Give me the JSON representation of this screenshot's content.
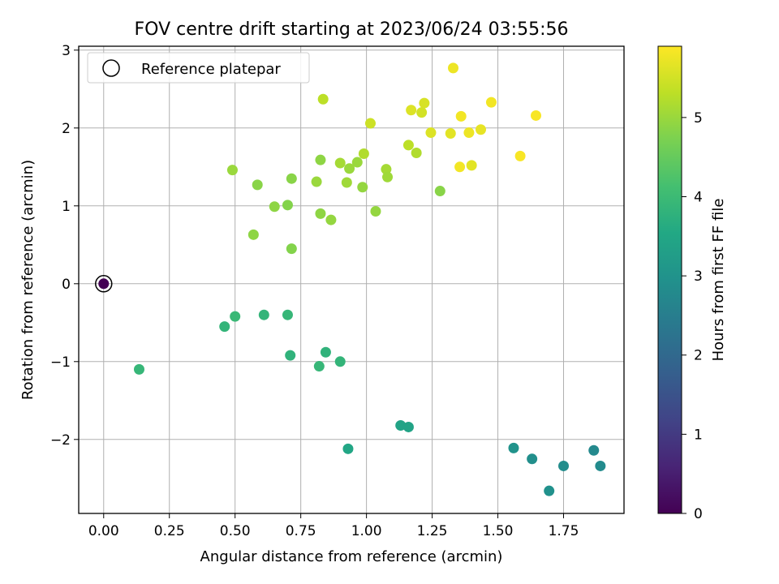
{
  "chart_data": {
    "type": "scatter",
    "title": "FOV centre drift starting at 2023/06/24 03:55:56",
    "xlabel": "Angular distance from reference (arcmin)",
    "ylabel": "Rotation from reference (arcmin)",
    "xlim": [
      -0.095,
      1.98
    ],
    "ylim": [
      -2.95,
      3.05
    ],
    "xticks": [
      "0.00",
      "0.25",
      "0.50",
      "0.75",
      "1.00",
      "1.25",
      "1.50",
      "1.75"
    ],
    "xtick_values": [
      0,
      0.25,
      0.5,
      0.75,
      1.0,
      1.25,
      1.5,
      1.75
    ],
    "yticks": [
      "−2",
      "−1",
      "0",
      "1",
      "2",
      "3"
    ],
    "ytick_values": [
      -2,
      -1,
      0,
      1,
      2,
      3
    ],
    "grid": true,
    "legend": {
      "position": "top-left",
      "entries": [
        "Reference platepar"
      ]
    },
    "colorbar": {
      "label": "Hours from first FF file",
      "colormap": "viridis",
      "range": [
        0,
        5.9
      ],
      "ticks": [
        "0",
        "1",
        "2",
        "3",
        "4",
        "5"
      ],
      "tick_values": [
        0,
        1,
        2,
        3,
        4,
        5
      ]
    },
    "reference_point": {
      "x": 0.0,
      "y": 0.0,
      "hours": 0.0
    },
    "points": [
      {
        "x": 0.135,
        "y": -1.1,
        "h": 3.9
      },
      {
        "x": 0.46,
        "y": -0.55,
        "h": 3.85
      },
      {
        "x": 0.5,
        "y": -0.42,
        "h": 3.95
      },
      {
        "x": 0.61,
        "y": -0.4,
        "h": 3.85
      },
      {
        "x": 0.7,
        "y": -0.4,
        "h": 3.9
      },
      {
        "x": 0.71,
        "y": -0.92,
        "h": 3.8
      },
      {
        "x": 0.82,
        "y": -1.06,
        "h": 3.9
      },
      {
        "x": 0.845,
        "y": -0.88,
        "h": 3.8
      },
      {
        "x": 0.9,
        "y": -1.0,
        "h": 3.85
      },
      {
        "x": 0.93,
        "y": -2.12,
        "h": 3.5
      },
      {
        "x": 1.13,
        "y": -1.82,
        "h": 3.4
      },
      {
        "x": 1.16,
        "y": -1.84,
        "h": 3.4
      },
      {
        "x": 1.56,
        "y": -2.11,
        "h": 3.0
      },
      {
        "x": 1.63,
        "y": -2.25,
        "h": 2.9
      },
      {
        "x": 1.695,
        "y": -2.66,
        "h": 2.95
      },
      {
        "x": 1.75,
        "y": -2.34,
        "h": 2.85
      },
      {
        "x": 1.865,
        "y": -2.14,
        "h": 2.75
      },
      {
        "x": 1.89,
        "y": -2.34,
        "h": 2.8
      },
      {
        "x": 0.49,
        "y": 1.46,
        "h": 5.0
      },
      {
        "x": 0.57,
        "y": 0.63,
        "h": 4.9
      },
      {
        "x": 0.585,
        "y": 1.27,
        "h": 4.85
      },
      {
        "x": 0.65,
        "y": 0.99,
        "h": 4.9
      },
      {
        "x": 0.7,
        "y": 1.01,
        "h": 4.8
      },
      {
        "x": 0.715,
        "y": 1.35,
        "h": 4.85
      },
      {
        "x": 0.715,
        "y": 0.45,
        "h": 4.8
      },
      {
        "x": 0.81,
        "y": 1.31,
        "h": 5.0
      },
      {
        "x": 0.825,
        "y": 1.59,
        "h": 4.9
      },
      {
        "x": 0.825,
        "y": 0.9,
        "h": 4.9
      },
      {
        "x": 0.835,
        "y": 2.37,
        "h": 5.3
      },
      {
        "x": 0.865,
        "y": 0.82,
        "h": 4.95
      },
      {
        "x": 0.9,
        "y": 1.55,
        "h": 5.1
      },
      {
        "x": 0.925,
        "y": 1.3,
        "h": 5.05
      },
      {
        "x": 0.935,
        "y": 1.48,
        "h": 5.0
      },
      {
        "x": 0.965,
        "y": 1.56,
        "h": 5.0
      },
      {
        "x": 0.985,
        "y": 1.24,
        "h": 4.95
      },
      {
        "x": 0.99,
        "y": 1.67,
        "h": 5.2
      },
      {
        "x": 1.015,
        "y": 2.06,
        "h": 5.45
      },
      {
        "x": 1.035,
        "y": 0.93,
        "h": 4.95
      },
      {
        "x": 1.075,
        "y": 1.47,
        "h": 5.1
      },
      {
        "x": 1.08,
        "y": 1.37,
        "h": 5.05
      },
      {
        "x": 1.16,
        "y": 1.78,
        "h": 5.3
      },
      {
        "x": 1.17,
        "y": 2.23,
        "h": 5.6
      },
      {
        "x": 1.19,
        "y": 1.68,
        "h": 5.2
      },
      {
        "x": 1.21,
        "y": 2.2,
        "h": 5.5
      },
      {
        "x": 1.22,
        "y": 2.32,
        "h": 5.55
      },
      {
        "x": 1.245,
        "y": 1.94,
        "h": 5.6
      },
      {
        "x": 1.28,
        "y": 1.19,
        "h": 4.85
      },
      {
        "x": 1.32,
        "y": 1.93,
        "h": 5.65
      },
      {
        "x": 1.33,
        "y": 2.77,
        "h": 5.75
      },
      {
        "x": 1.355,
        "y": 1.5,
        "h": 5.8
      },
      {
        "x": 1.36,
        "y": 2.15,
        "h": 5.8
      },
      {
        "x": 1.39,
        "y": 1.94,
        "h": 5.75
      },
      {
        "x": 1.4,
        "y": 1.52,
        "h": 5.65
      },
      {
        "x": 1.435,
        "y": 1.98,
        "h": 5.7
      },
      {
        "x": 1.475,
        "y": 2.33,
        "h": 5.8
      },
      {
        "x": 1.585,
        "y": 1.64,
        "h": 5.85
      },
      {
        "x": 1.645,
        "y": 2.16,
        "h": 5.85
      }
    ]
  }
}
